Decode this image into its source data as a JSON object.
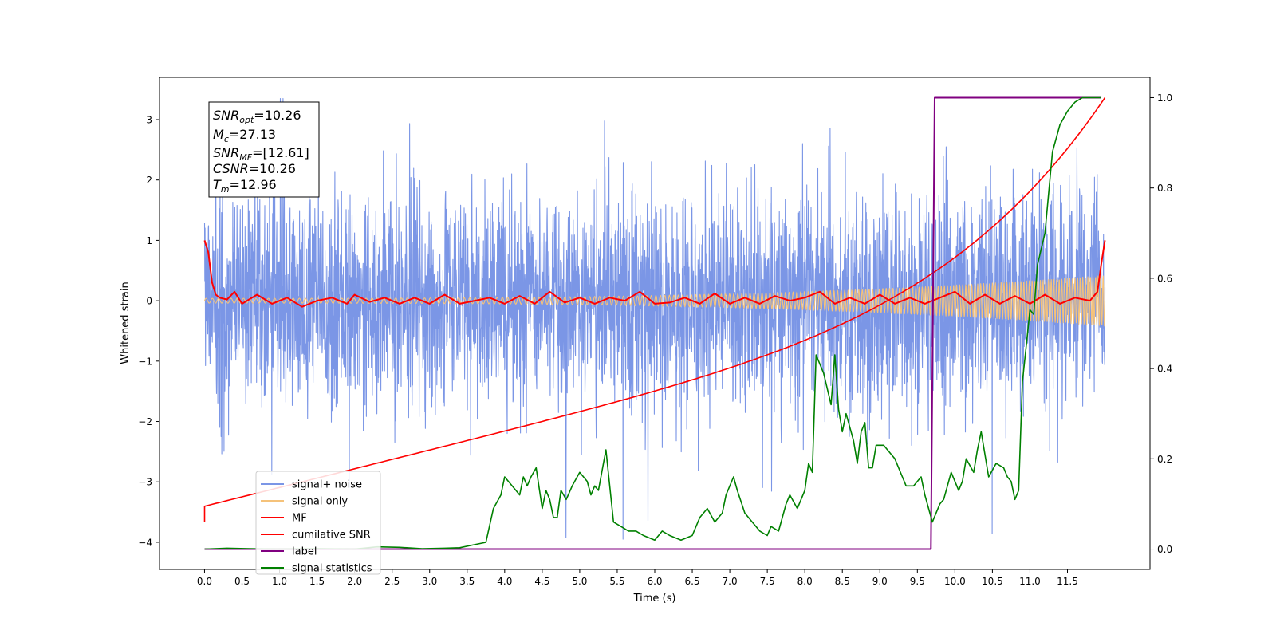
{
  "chart_data": {
    "type": "line",
    "xlabel": "Time (s)",
    "ylabel_left": "Whitened strain",
    "ylabel_right": "",
    "xlim": [
      -0.6,
      12.6
    ],
    "ylim_left": [
      -4.45,
      3.7
    ],
    "ylim_right": [
      -0.045,
      1.045
    ],
    "xticks": [
      0.0,
      0.5,
      1.0,
      1.5,
      2.0,
      2.5,
      3.0,
      3.5,
      4.0,
      4.5,
      5.0,
      5.5,
      6.0,
      6.5,
      7.0,
      7.5,
      8.0,
      8.5,
      9.0,
      9.5,
      10.0,
      10.5,
      11.0,
      11.5
    ],
    "xtick_labels": [
      "0.0",
      "0.5",
      "1.0",
      "1.5",
      "2.0",
      "2.5",
      "3.0",
      "3.5",
      "4.0",
      "4.5",
      "5.0",
      "5.5",
      "6.0",
      "6.5",
      "7.0",
      "7.5",
      "8.0",
      "8.5",
      "9.0",
      "9.5",
      "10.0",
      "10.5",
      "11.0",
      "11.5"
    ],
    "yticks_left": [
      3,
      2,
      1,
      0,
      -1,
      -2,
      -3,
      -4
    ],
    "ytick_labels_left": [
      "3",
      "2",
      "1",
      "0",
      "−1",
      "−2",
      "−3",
      "−4"
    ],
    "yticks_right": [
      1.0,
      0.8,
      0.6,
      0.4,
      0.2,
      0.0
    ],
    "ytick_labels_right": [
      "1.0",
      "0.8",
      "0.6",
      "0.4",
      "0.2",
      "0.0"
    ],
    "grid": false,
    "legend_position": "lower-left",
    "annotation_lines": [
      {
        "sym": "SNR",
        "sub": "opt",
        "val": "=10.26"
      },
      {
        "sym": "M",
        "sub": "c",
        "val": "=27.13"
      },
      {
        "sym": "SNR",
        "sub": "MF",
        "val": "=[12.61]"
      },
      {
        "sym": "CSNR",
        "sub": "",
        "val": "=10.26"
      },
      {
        "sym": "T",
        "sub": "m",
        "val": "=12.96"
      }
    ],
    "series": [
      {
        "name": "signal+ noise",
        "color": "#7b96e6",
        "axis": "left",
        "kind": "noise",
        "amplitude": 1.05,
        "duration": 12.0
      },
      {
        "name": "signal only",
        "color": "#f5c27a",
        "axis": "left",
        "kind": "chirp",
        "duration": 12.0,
        "amplitude_start": 0.04,
        "amplitude_end": 0.42
      },
      {
        "name": "MF",
        "color": "#ff0000",
        "axis": "left",
        "x": [
          0.0,
          0.05,
          0.1,
          0.15,
          0.2,
          0.3,
          0.4,
          0.5,
          0.7,
          0.9,
          1.1,
          1.3,
          1.5,
          1.7,
          1.9,
          2.0,
          2.2,
          2.4,
          2.6,
          2.8,
          3.0,
          3.2,
          3.4,
          3.6,
          3.8,
          4.0,
          4.2,
          4.4,
          4.6,
          4.8,
          5.0,
          5.2,
          5.4,
          5.6,
          5.8,
          6.0,
          6.2,
          6.4,
          6.6,
          6.8,
          7.0,
          7.2,
          7.4,
          7.6,
          7.8,
          8.0,
          8.2,
          8.4,
          8.6,
          8.8,
          9.0,
          9.2,
          9.4,
          9.6,
          9.8,
          10.0,
          10.2,
          10.4,
          10.6,
          10.8,
          11.0,
          11.2,
          11.4,
          11.6,
          11.8,
          11.9,
          11.95,
          12.0
        ],
        "y": [
          1.0,
          0.8,
          0.3,
          0.1,
          0.05,
          0.02,
          0.15,
          -0.05,
          0.1,
          -0.05,
          0.05,
          -0.1,
          0.0,
          0.05,
          -0.05,
          0.1,
          -0.02,
          0.05,
          -0.05,
          0.05,
          -0.05,
          0.1,
          -0.05,
          0.0,
          0.05,
          -0.05,
          0.08,
          -0.05,
          0.15,
          -0.03,
          0.05,
          -0.05,
          0.05,
          0.0,
          0.15,
          -0.05,
          -0.03,
          0.05,
          -0.05,
          0.12,
          -0.05,
          0.05,
          -0.05,
          0.08,
          0.0,
          0.05,
          0.15,
          -0.05,
          0.05,
          -0.05,
          0.1,
          -0.05,
          0.05,
          -0.05,
          0.05,
          0.15,
          -0.05,
          0.1,
          -0.05,
          0.08,
          -0.05,
          0.1,
          -0.05,
          0.05,
          0.0,
          0.15,
          0.6,
          1.0
        ]
      },
      {
        "name": "cumilative SNR",
        "color": "#ff0000",
        "axis": "right",
        "kind": "cumulative",
        "duration": 12.0,
        "start": 0.095,
        "end": 1.0
      },
      {
        "name": "label",
        "color": "#800080",
        "axis": "right",
        "x": [
          0.0,
          9.68,
          9.73,
          11.95
        ],
        "y": [
          0.0,
          0.0,
          1.0,
          1.0
        ]
      },
      {
        "name": "signal statistics",
        "color": "#008000",
        "axis": "right",
        "x": [
          0.0,
          0.3,
          0.6,
          1.0,
          1.5,
          2.0,
          2.3,
          2.6,
          2.9,
          3.2,
          3.4,
          3.6,
          3.75,
          3.85,
          3.95,
          4.0,
          4.1,
          4.15,
          4.2,
          4.25,
          4.3,
          4.35,
          4.42,
          4.5,
          4.55,
          4.6,
          4.65,
          4.7,
          4.75,
          4.82,
          4.9,
          5.0,
          5.1,
          5.15,
          5.2,
          5.25,
          5.35,
          5.45,
          5.55,
          5.65,
          5.75,
          5.85,
          6.0,
          6.1,
          6.2,
          6.35,
          6.5,
          6.6,
          6.7,
          6.8,
          6.9,
          6.95,
          7.05,
          7.1,
          7.2,
          7.3,
          7.4,
          7.5,
          7.55,
          7.65,
          7.75,
          7.8,
          7.9,
          8.0,
          8.05,
          8.1,
          8.15,
          8.25,
          8.35,
          8.4,
          8.45,
          8.5,
          8.55,
          8.65,
          8.7,
          8.75,
          8.8,
          8.85,
          8.9,
          8.95,
          9.05,
          9.2,
          9.3,
          9.35,
          9.45,
          9.55,
          9.6,
          9.7,
          9.8,
          9.85,
          9.95,
          10.05,
          10.1,
          10.15,
          10.25,
          10.3,
          10.35,
          10.45,
          10.55,
          10.65,
          10.7,
          10.75,
          10.8,
          10.85,
          10.9,
          10.95,
          11.0,
          11.05,
          11.1,
          11.2,
          11.3,
          11.4,
          11.5,
          11.6,
          11.7,
          11.8,
          11.95
        ],
        "y": [
          0.0,
          0.002,
          0.001,
          0.0,
          0.001,
          0.0,
          0.005,
          0.004,
          0.001,
          0.002,
          0.003,
          0.01,
          0.015,
          0.09,
          0.12,
          0.16,
          0.14,
          0.13,
          0.12,
          0.16,
          0.14,
          0.16,
          0.18,
          0.09,
          0.13,
          0.11,
          0.07,
          0.07,
          0.13,
          0.11,
          0.14,
          0.17,
          0.15,
          0.12,
          0.14,
          0.13,
          0.22,
          0.06,
          0.05,
          0.04,
          0.04,
          0.03,
          0.02,
          0.04,
          0.03,
          0.02,
          0.03,
          0.07,
          0.09,
          0.06,
          0.08,
          0.12,
          0.16,
          0.13,
          0.08,
          0.06,
          0.04,
          0.03,
          0.05,
          0.04,
          0.1,
          0.12,
          0.09,
          0.13,
          0.19,
          0.17,
          0.43,
          0.39,
          0.32,
          0.43,
          0.31,
          0.26,
          0.3,
          0.24,
          0.19,
          0.26,
          0.28,
          0.18,
          0.18,
          0.23,
          0.23,
          0.2,
          0.16,
          0.14,
          0.14,
          0.16,
          0.12,
          0.06,
          0.1,
          0.11,
          0.17,
          0.13,
          0.15,
          0.2,
          0.17,
          0.22,
          0.26,
          0.16,
          0.19,
          0.18,
          0.16,
          0.15,
          0.11,
          0.13,
          0.37,
          0.45,
          0.53,
          0.52,
          0.63,
          0.7,
          0.88,
          0.94,
          0.97,
          0.99,
          1.0,
          1.0,
          1.0
        ]
      }
    ]
  }
}
